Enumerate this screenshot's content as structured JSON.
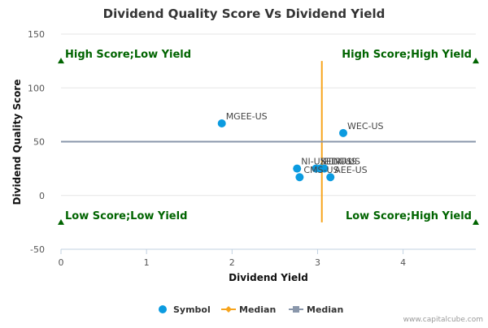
{
  "chart_data": {
    "type": "scatter",
    "title": "Dividend Quality Score Vs Dividend Yield",
    "xlabel": "Dividend Yield",
    "ylabel": "Dividend Quality Score",
    "xlim": [
      0,
      4.85
    ],
    "ylim": [
      -50,
      150
    ],
    "x_ticks": [
      0,
      1,
      2,
      3,
      4
    ],
    "y_ticks": [
      -50,
      0,
      50,
      100,
      150
    ],
    "grid": "horizontal",
    "series": [
      {
        "name": "Symbol",
        "color": "#0b9be0",
        "points": [
          {
            "label": "MGEE-US",
            "x": 1.88,
            "y": 67
          },
          {
            "label": "WEC-US",
            "x": 3.3,
            "y": 58
          },
          {
            "label": "NI-US",
            "x": 2.76,
            "y": 25
          },
          {
            "label": "CMS-US",
            "x": 2.79,
            "y": 17
          },
          {
            "label": "XEL-US",
            "x": 2.98,
            "y": 25
          },
          {
            "label": "ETR-US",
            "x": 3.03,
            "y": 25
          },
          {
            "label": "LNT-US",
            "x": 3.08,
            "y": 25
          },
          {
            "label": "AEE-US",
            "x": 3.15,
            "y": 17
          }
        ]
      },
      {
        "name": "Median",
        "color": "#f7a41c",
        "orientation": "vertical",
        "x": 3.05,
        "y_range": [
          -25,
          125
        ]
      },
      {
        "name": "Median",
        "color": "#8a97ab",
        "orientation": "horizontal",
        "y": 50,
        "x_range": [
          0,
          4.85
        ]
      }
    ],
    "quadrant_labels": [
      {
        "text": "High Score;Low Yield",
        "x": 0,
        "y": 125
      },
      {
        "text": "High Score;High Yield",
        "x": 4.85,
        "y": 125
      },
      {
        "text": "Low Score;Low Yield",
        "x": 0,
        "y": -25
      },
      {
        "text": "Low Score;High Yield",
        "x": 4.85,
        "y": -25
      }
    ],
    "quadrant_color": "#006400",
    "legend": "bottom-center"
  },
  "credit": "www.capitalcube.com"
}
